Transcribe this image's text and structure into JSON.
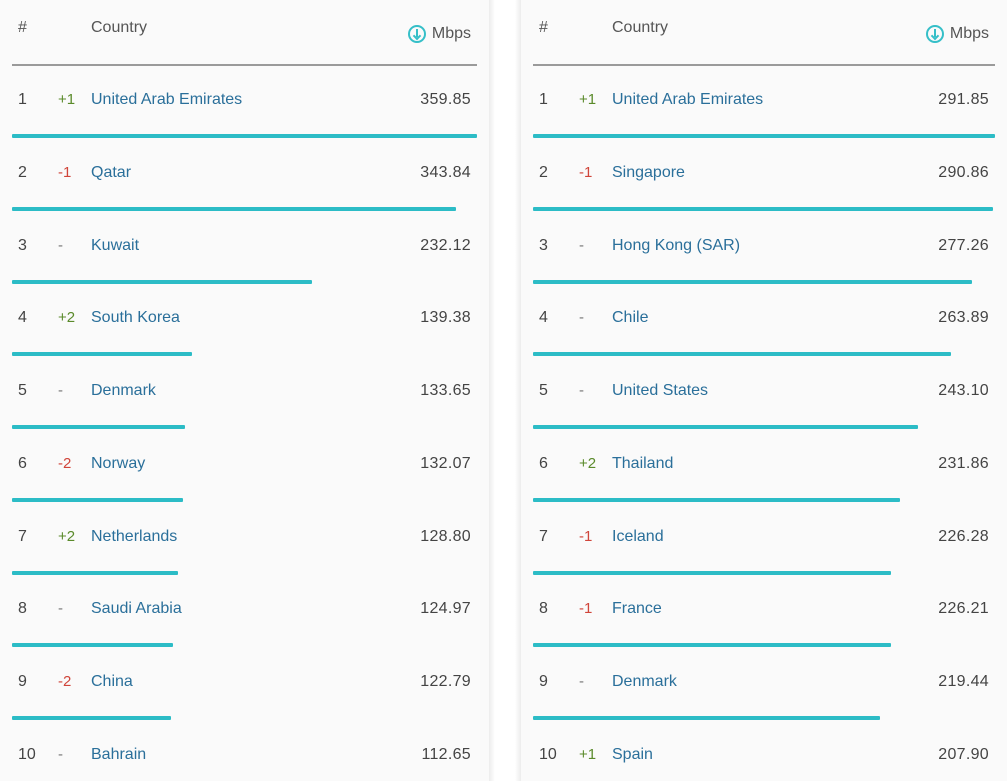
{
  "colors": {
    "accent": "#2cbcc6",
    "link": "#2a6f9a",
    "up": "#5a8a2a",
    "down": "#d0453a"
  },
  "header": {
    "rank_label": "#",
    "country_label": "Country",
    "speed_unit": "Mbps",
    "speed_icon": "download-circle-icon"
  },
  "left_table": {
    "max_value": 359.85,
    "rows": [
      {
        "rank": "1",
        "change": "+1",
        "trend": "up",
        "country": "United Arab Emirates",
        "value": "359.85"
      },
      {
        "rank": "2",
        "change": "-1",
        "trend": "down",
        "country": "Qatar",
        "value": "343.84"
      },
      {
        "rank": "3",
        "change": "-",
        "trend": "same",
        "country": "Kuwait",
        "value": "232.12"
      },
      {
        "rank": "4",
        "change": "+2",
        "trend": "up",
        "country": "South Korea",
        "value": "139.38"
      },
      {
        "rank": "5",
        "change": "-",
        "trend": "same",
        "country": "Denmark",
        "value": "133.65"
      },
      {
        "rank": "6",
        "change": "-2",
        "trend": "down",
        "country": "Norway",
        "value": "132.07"
      },
      {
        "rank": "7",
        "change": "+2",
        "trend": "up",
        "country": "Netherlands",
        "value": "128.80"
      },
      {
        "rank": "8",
        "change": "-",
        "trend": "same",
        "country": "Saudi Arabia",
        "value": "124.97"
      },
      {
        "rank": "9",
        "change": "-2",
        "trend": "down",
        "country": "China",
        "value": "122.79"
      },
      {
        "rank": "10",
        "change": "-",
        "trend": "same",
        "country": "Bahrain",
        "value": "112.65"
      }
    ]
  },
  "right_table": {
    "max_value": 291.85,
    "rows": [
      {
        "rank": "1",
        "change": "+1",
        "trend": "up",
        "country": "United Arab Emirates",
        "value": "291.85"
      },
      {
        "rank": "2",
        "change": "-1",
        "trend": "down",
        "country": "Singapore",
        "value": "290.86"
      },
      {
        "rank": "3",
        "change": "-",
        "trend": "same",
        "country": "Hong Kong (SAR)",
        "value": "277.26"
      },
      {
        "rank": "4",
        "change": "-",
        "trend": "same",
        "country": "Chile",
        "value": "263.89"
      },
      {
        "rank": "5",
        "change": "-",
        "trend": "same",
        "country": "United States",
        "value": "243.10"
      },
      {
        "rank": "6",
        "change": "+2",
        "trend": "up",
        "country": "Thailand",
        "value": "231.86"
      },
      {
        "rank": "7",
        "change": "-1",
        "trend": "down",
        "country": "Iceland",
        "value": "226.28"
      },
      {
        "rank": "8",
        "change": "-1",
        "trend": "down",
        "country": "France",
        "value": "226.21"
      },
      {
        "rank": "9",
        "change": "-",
        "trend": "same",
        "country": "Denmark",
        "value": "219.44"
      },
      {
        "rank": "10",
        "change": "+1",
        "trend": "up",
        "country": "Spain",
        "value": "207.90"
      }
    ]
  }
}
